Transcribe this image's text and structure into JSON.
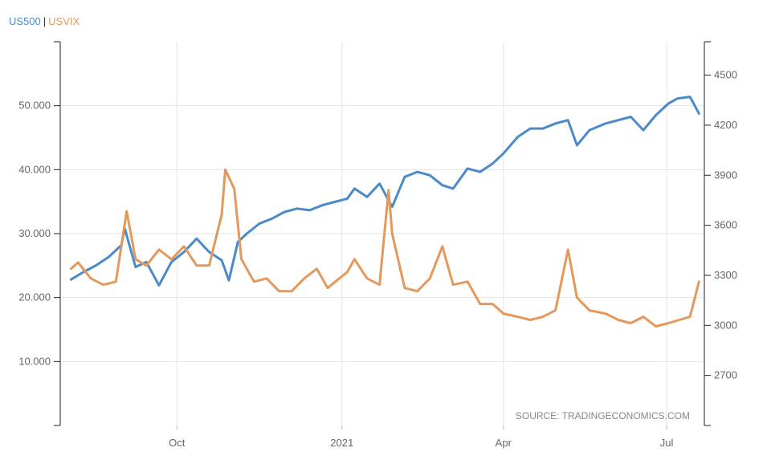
{
  "legend": {
    "series1": "US500",
    "separator": "|",
    "series2": "USVIX",
    "color1": "#4a8ac9",
    "color2": "#e3995c"
  },
  "source": "SOURCE: TRADINGECONOMICS.COM",
  "chart_data": {
    "type": "line",
    "grid": true,
    "legend_position": "top-left",
    "x_ticks": [
      "Oct",
      "2021",
      "Apr",
      "Jul"
    ],
    "y_left": {
      "ticks": [
        "10.000",
        "20.000",
        "30.000",
        "40.000",
        "50.000"
      ],
      "range": [
        0,
        60
      ]
    },
    "y_right": {
      "ticks": [
        "2700",
        "3000",
        "3300",
        "3600",
        "3900",
        "4200",
        "4500"
      ],
      "range": [
        2400,
        4700
      ]
    },
    "series": [
      {
        "name": "US500",
        "axis": "right",
        "color": "#4a8ac9",
        "x": [
          "2020-08-03",
          "2020-08-10",
          "2020-08-17",
          "2020-08-24",
          "2020-08-31",
          "2020-09-02",
          "2020-09-08",
          "2020-09-14",
          "2020-09-21",
          "2020-09-28",
          "2020-10-05",
          "2020-10-12",
          "2020-10-19",
          "2020-10-26",
          "2020-10-30",
          "2020-11-04",
          "2020-11-09",
          "2020-11-16",
          "2020-11-23",
          "2020-11-30",
          "2020-12-07",
          "2020-12-14",
          "2020-12-21",
          "2020-12-28",
          "2021-01-04",
          "2021-01-08",
          "2021-01-15",
          "2021-01-22",
          "2021-01-29",
          "2021-02-05",
          "2021-02-12",
          "2021-02-19",
          "2021-02-26",
          "2021-03-04",
          "2021-03-12",
          "2021-03-19",
          "2021-03-26",
          "2021-04-01",
          "2021-04-09",
          "2021-04-16",
          "2021-04-23",
          "2021-04-30",
          "2021-05-07",
          "2021-05-12",
          "2021-05-19",
          "2021-05-28",
          "2021-06-04",
          "2021-06-11",
          "2021-06-18",
          "2021-06-25",
          "2021-07-02",
          "2021-07-07",
          "2021-07-14",
          "2021-07-19"
        ],
        "values": [
          3275,
          3320,
          3360,
          3410,
          3480,
          3580,
          3350,
          3380,
          3240,
          3380,
          3440,
          3520,
          3440,
          3390,
          3270,
          3500,
          3550,
          3610,
          3640,
          3680,
          3700,
          3690,
          3720,
          3740,
          3760,
          3820,
          3770,
          3850,
          3710,
          3890,
          3920,
          3900,
          3840,
          3820,
          3940,
          3920,
          3970,
          4030,
          4130,
          4180,
          4180,
          4210,
          4230,
          4080,
          4170,
          4210,
          4230,
          4250,
          4170,
          4260,
          4330,
          4360,
          4370,
          4270
        ]
      },
      {
        "name": "USVIX",
        "axis": "left",
        "color": "#e3995c",
        "x": [
          "2020-08-03",
          "2020-08-07",
          "2020-08-14",
          "2020-08-21",
          "2020-08-28",
          "2020-09-03",
          "2020-09-08",
          "2020-09-14",
          "2020-09-21",
          "2020-09-28",
          "2020-10-05",
          "2020-10-12",
          "2020-10-19",
          "2020-10-26",
          "2020-10-28",
          "2020-11-02",
          "2020-11-06",
          "2020-11-13",
          "2020-11-20",
          "2020-11-27",
          "2020-12-04",
          "2020-12-11",
          "2020-12-18",
          "2020-12-24",
          "2021-01-04",
          "2021-01-08",
          "2021-01-15",
          "2021-01-22",
          "2021-01-27",
          "2021-01-29",
          "2021-02-05",
          "2021-02-12",
          "2021-02-19",
          "2021-02-26",
          "2021-03-04",
          "2021-03-12",
          "2021-03-19",
          "2021-03-26",
          "2021-04-01",
          "2021-04-09",
          "2021-04-16",
          "2021-04-23",
          "2021-04-30",
          "2021-05-07",
          "2021-05-12",
          "2021-05-19",
          "2021-05-28",
          "2021-06-04",
          "2021-06-11",
          "2021-06-18",
          "2021-06-25",
          "2021-07-02",
          "2021-07-08",
          "2021-07-14",
          "2021-07-19"
        ],
        "values": [
          24.5,
          25.5,
          23,
          22,
          22.5,
          33.5,
          26,
          25,
          27.5,
          26,
          28,
          25,
          25,
          33,
          40,
          37,
          26,
          22.5,
          23,
          21,
          21,
          23,
          24.5,
          21.5,
          24,
          26,
          23,
          22,
          36.8,
          30,
          21.5,
          21,
          23,
          28,
          22,
          22.5,
          19,
          19,
          17.5,
          17,
          16.5,
          17,
          18,
          27.5,
          20,
          18,
          17.5,
          16.5,
          16,
          17,
          15.5,
          16,
          16.5,
          17,
          22.5
        ]
      }
    ]
  }
}
